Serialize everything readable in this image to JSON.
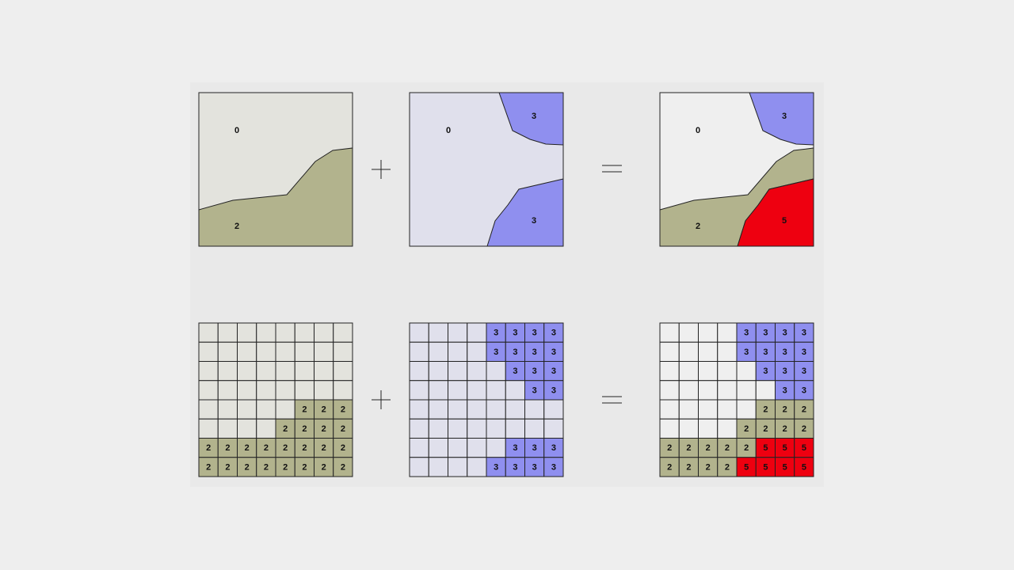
{
  "colors": {
    "background": "#e9e9e9",
    "value_0_map1": "#e3e3dd",
    "value_0_map2": "#e0e0ec",
    "value_0_result": "#efefef",
    "value_2": "#b2b38d",
    "value_3": "#8f8fef",
    "value_5": "#ee0010",
    "outline": "#222222"
  },
  "operators": {
    "plus": "+",
    "equals": "="
  },
  "vector_maps": {
    "map_a": {
      "labels": [
        "0",
        "2"
      ]
    },
    "map_b": {
      "labels": [
        "0",
        "3",
        "3"
      ]
    },
    "result": {
      "labels": [
        "0",
        "3",
        "2",
        "5"
      ]
    }
  },
  "raster_grids": {
    "grid_a": [
      [
        "",
        "",
        "",
        "",
        "",
        "",
        "",
        ""
      ],
      [
        "",
        "",
        "",
        "",
        "",
        "",
        "",
        ""
      ],
      [
        "",
        "",
        "",
        "",
        "",
        "",
        "",
        ""
      ],
      [
        "",
        "",
        "",
        "",
        "",
        "",
        "",
        ""
      ],
      [
        "",
        "",
        "",
        "",
        "",
        "2",
        "2",
        "2"
      ],
      [
        "",
        "",
        "",
        "",
        "2",
        "2",
        "2",
        "2"
      ],
      [
        "2",
        "2",
        "2",
        "2",
        "2",
        "2",
        "2",
        "2"
      ],
      [
        "2",
        "2",
        "2",
        "2",
        "2",
        "2",
        "2",
        "2"
      ]
    ],
    "grid_b": [
      [
        "",
        "",
        "",
        "",
        "3",
        "3",
        "3",
        "3"
      ],
      [
        "",
        "",
        "",
        "",
        "3",
        "3",
        "3",
        "3"
      ],
      [
        "",
        "",
        "",
        "",
        "",
        "3",
        "3",
        "3"
      ],
      [
        "",
        "",
        "",
        "",
        "",
        "",
        "3",
        "3"
      ],
      [
        "",
        "",
        "",
        "",
        "",
        "",
        "",
        ""
      ],
      [
        "",
        "",
        "",
        "",
        "",
        "",
        "",
        ""
      ],
      [
        "",
        "",
        "",
        "",
        "",
        "3",
        "3",
        "3"
      ],
      [
        "",
        "",
        "",
        "",
        "3",
        "3",
        "3",
        "3"
      ]
    ],
    "grid_result": [
      [
        "",
        "",
        "",
        "",
        "3",
        "3",
        "3",
        "3"
      ],
      [
        "",
        "",
        "",
        "",
        "3",
        "3",
        "3",
        "3"
      ],
      [
        "",
        "",
        "",
        "",
        "",
        "3",
        "3",
        "3"
      ],
      [
        "",
        "",
        "",
        "",
        "",
        "",
        "3",
        "3"
      ],
      [
        "",
        "",
        "",
        "",
        "",
        "2",
        "2",
        "2"
      ],
      [
        "",
        "",
        "",
        "",
        "2",
        "2",
        "2",
        "2"
      ],
      [
        "2",
        "2",
        "2",
        "2",
        "2",
        "5",
        "5",
        "5"
      ],
      [
        "2",
        "2",
        "2",
        "2",
        "5",
        "5",
        "5",
        "5"
      ]
    ]
  }
}
